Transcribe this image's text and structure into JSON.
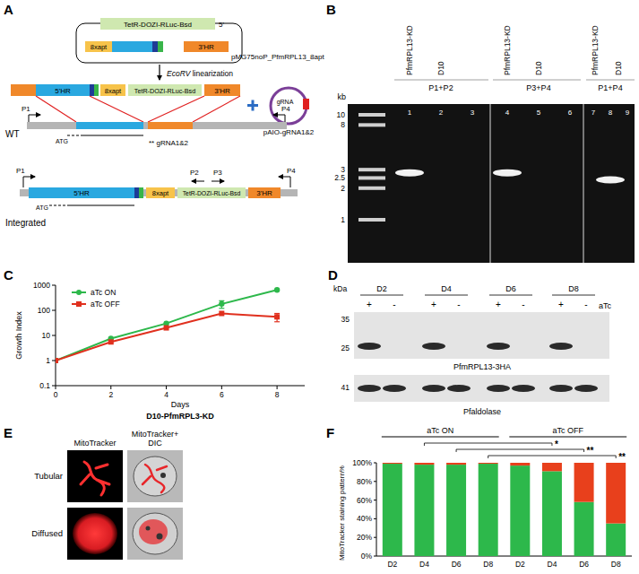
{
  "chart_data": [
    {
      "type": "line",
      "panel": "C",
      "subtitle": "D10-PfmRPL3-KD",
      "xlabel": "Days",
      "ylabel": "Growth Index",
      "x": [
        0,
        2,
        4,
        6,
        8
      ],
      "xlim": [
        0,
        9
      ],
      "xticks": [
        0,
        2,
        4,
        6,
        8
      ],
      "ylim": [
        0.1,
        1000
      ],
      "yticks": [
        0.1,
        1,
        10,
        100,
        1000
      ],
      "log": "y",
      "legend": "upper left",
      "series": [
        {
          "name": "aTc ON",
          "color": "#2db84b",
          "marker": "circle",
          "values": [
            1,
            7.5,
            30,
            180,
            650
          ],
          "errors": [
            null,
            null,
            null,
            60,
            null
          ]
        },
        {
          "name": "aTc OFF",
          "color": "#e0301e",
          "marker": "square",
          "values": [
            1,
            5.5,
            20,
            75,
            55
          ],
          "errors": [
            null,
            null,
            null,
            null,
            20
          ]
        }
      ]
    },
    {
      "type": "bar",
      "panel": "F",
      "stacked": true,
      "ylabel": "MitoTracker staining pattern%",
      "categories": [
        "D2",
        "D4",
        "D6",
        "D8",
        "D2",
        "D4",
        "D6",
        "D8"
      ],
      "ylim": [
        0,
        100
      ],
      "yticks": [
        {
          "value": 0,
          "label": "0%"
        },
        {
          "value": 20,
          "label": "20%"
        },
        {
          "value": 40,
          "label": "40%"
        },
        {
          "value": 60,
          "label": "60%"
        },
        {
          "value": 80,
          "label": "80%"
        },
        {
          "value": 100,
          "label": "100%"
        }
      ],
      "groups": [
        {
          "label": "aTc ON",
          "size": 4
        },
        {
          "label": "aTc OFF",
          "size": 4
        }
      ],
      "significance": [
        {
          "label": "*",
          "pair": [
            1,
            5
          ]
        },
        {
          "label": "**",
          "pair": [
            2,
            6
          ]
        },
        {
          "label": "**",
          "pair": [
            3,
            7
          ]
        }
      ],
      "series": [
        {
          "color": "#2db84b",
          "values": [
            99,
            98,
            98,
            99,
            97,
            91,
            58,
            35
          ]
        },
        {
          "color": "#e8401c",
          "values": [
            1,
            2,
            2,
            1,
            3,
            9,
            42,
            65
          ]
        }
      ]
    }
  ],
  "panels": {
    "A": {
      "label": "A",
      "plasmid": {
        "name": "pMG75noP_PfmRPL13_8apt",
        "end": "5'",
        "segments": [
          "TetR-DOZI-RLuc-Bsd",
          "8xapt",
          "3'HR"
        ]
      },
      "linearization": {
        "enzyme": "EcoRV",
        "text": " linearization"
      },
      "linear": {
        "segments": [
          "5'HR",
          "8xapt",
          "TetR-DOZI-RLuc-Bsd",
          "3'HR"
        ]
      },
      "gRNA": {
        "insert": "gRNA",
        "name": "pAIO-gRNA1&2"
      },
      "wt": {
        "label": "WT",
        "primers": [
          "P1",
          "P4"
        ],
        "start": "ATG",
        "site": "** gRNA1&2"
      },
      "integrated": {
        "label": "Integrated",
        "segments": [
          "5'HR",
          "8xapt",
          "TetR-DOZI-RLuc-Bsd",
          "3'HR"
        ],
        "primers": [
          "P1",
          "P2",
          "P3",
          "P4"
        ],
        "start": "ATG"
      }
    },
    "B": {
      "label": "B",
      "unit": "kb",
      "ladder": [
        10,
        8,
        3,
        2.5,
        2,
        1
      ],
      "lanes": [
        "1",
        "2",
        "3",
        "4",
        "5",
        "6",
        "7",
        "8",
        "9"
      ],
      "groups": [
        {
          "primers": "P1+P2",
          "samples": [
            "PfmRPL13-KD",
            "D10"
          ]
        },
        {
          "primers": "P3+P4",
          "samples": [
            "PfmRPL13-KD",
            "D10"
          ]
        },
        {
          "primers": "P1+P4",
          "samples": [
            "PfmRPL13-KD",
            "D10"
          ]
        }
      ],
      "bands": [
        {
          "lane": "1",
          "kb": 2.8
        },
        {
          "lane": "4",
          "kb": 2.8
        },
        {
          "lane": "8",
          "kb": 2.4
        }
      ]
    },
    "D": {
      "label": "D",
      "unit": "kDa",
      "treatment": "aTc",
      "days": [
        {
          "label": "D2",
          "signs": [
            "+",
            "-"
          ]
        },
        {
          "label": "D4",
          "signs": [
            "+",
            "-"
          ]
        },
        {
          "label": "D6",
          "signs": [
            "+",
            "-"
          ]
        },
        {
          "label": "D8",
          "signs": [
            "+",
            "-"
          ]
        }
      ],
      "blots": [
        {
          "name": "PfmRPL13-3HA",
          "markers": [
            35,
            25
          ],
          "present": [
            true,
            false,
            true,
            false,
            true,
            false,
            true,
            false
          ]
        },
        {
          "name": "Pfaldolase",
          "markers": [
            41
          ],
          "present": [
            true,
            true,
            true,
            true,
            true,
            true,
            true,
            true
          ]
        }
      ]
    },
    "E": {
      "label": "E",
      "columns": [
        [
          "MitoTracker"
        ],
        [
          "MitoTracker+",
          "DIC"
        ]
      ],
      "rows": [
        "Tubular",
        "Diffused"
      ]
    }
  }
}
